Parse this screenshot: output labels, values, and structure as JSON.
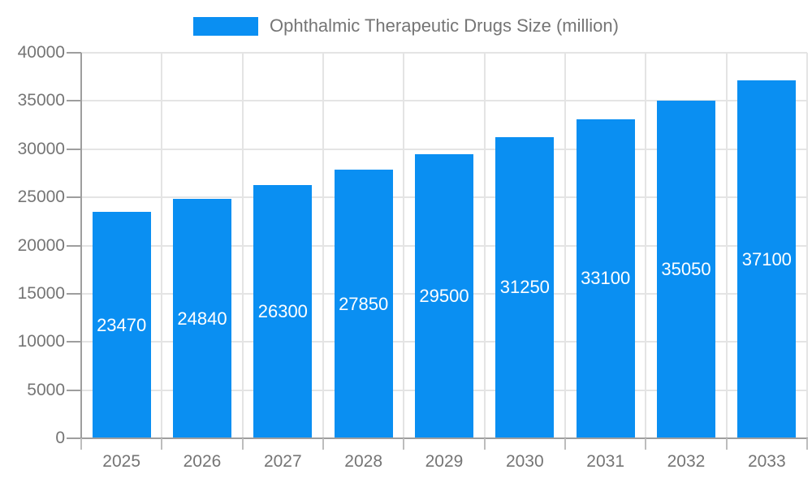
{
  "legend": {
    "label": "Ophthalmic Therapeutic Drugs Size (million)"
  },
  "colors": {
    "bar": "#0a8ff2",
    "grid": "#e4e4e4",
    "axis": "#9e9e9e",
    "tick": "#bdbdbd",
    "axis_text": "#757575",
    "value_label_text": "#ffffff",
    "background": "#ffffff"
  },
  "chart_data": {
    "type": "bar",
    "title": "",
    "xlabel": "",
    "ylabel": "",
    "categories": [
      "2025",
      "2026",
      "2027",
      "2028",
      "2029",
      "2030",
      "2031",
      "2032",
      "2033"
    ],
    "values": [
      23470,
      24840,
      26300,
      27850,
      29500,
      31250,
      33100,
      35050,
      37100
    ],
    "series_name": "Ophthalmic Therapeutic Drugs Size (million)",
    "ylim": [
      0,
      40000
    ],
    "yticks": [
      0,
      5000,
      10000,
      15000,
      20000,
      25000,
      30000,
      35000,
      40000
    ],
    "grid": true,
    "legend_position": "top",
    "value_labels": "inside-center"
  }
}
